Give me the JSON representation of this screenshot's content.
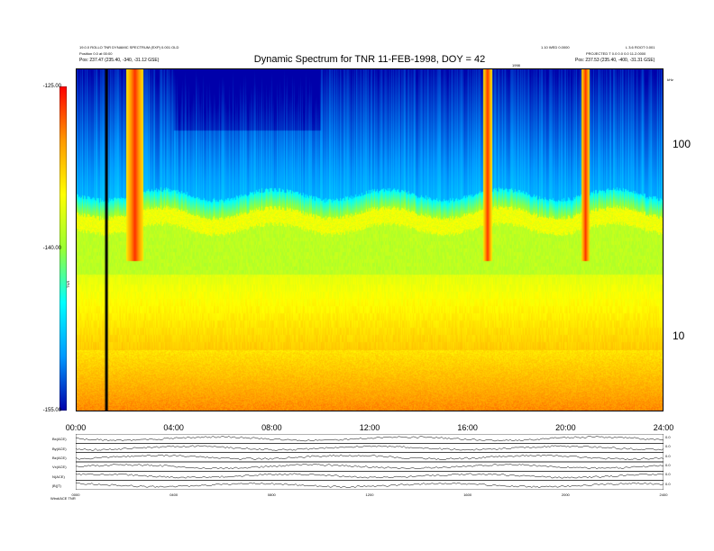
{
  "header": {
    "left_line1": "19.0.0 ROLLO TNR DYNAMIC SPECTRUM (EXP) 0.001 OLD",
    "left_line2": "Position 0.0 at 00:00",
    "left_pos": "Pos:   237.47 (235.40, -340, -31.12 GSE)",
    "right_line1": "1.10 WED 0.0000",
    "right_line2": "L 3.6 ROOT 0.001",
    "right_line3": "PROJECTED T 0.0 0.0 0.0 11.2.0000",
    "right_pos": "Pos:   237.53 (235.40, -400, -31.31 GSE)",
    "center_sub": "1998",
    "right_mark": "kHz"
  },
  "chart_data": {
    "type": "heatmap",
    "title": "Dynamic Spectrum for TNR 11-FEB-1998, DOY = 42",
    "x_ticks": [
      "00:00",
      "04:00",
      "08:00",
      "12:00",
      "16:00",
      "20:00",
      "24:00"
    ],
    "xlim": [
      0,
      24
    ],
    "y_ticks": [
      "100",
      "10"
    ],
    "y_tick_values": [
      100,
      10
    ],
    "ylim": [
      4,
      250
    ],
    "yscale": "log",
    "colorbar_ticks": [
      "-125.00",
      "-140.00",
      "-155.00"
    ],
    "colorbar_values": [
      -125,
      -140,
      -155
    ],
    "colorbar_label": "TNR",
    "colorbar_stops": [
      "#ff0000",
      "#ff9900",
      "#ffff00",
      "#99ff33",
      "#00ffff",
      "#0099ff",
      "#0000aa"
    ],
    "bursts_hours": [
      2.4,
      16.8,
      20.8
    ],
    "data_gap_hour": 1.2,
    "baseline_plasma_line_khz": 50
  },
  "panels": {
    "labels": [
      "Bx(ACE)",
      "By(ACE)",
      "Bz(ACE)",
      "Vx(ACE)",
      "N(ACE)",
      "|B|(T)"
    ],
    "values": [
      "0.0",
      "0.0",
      "0.0",
      "0.0",
      "0.0",
      "0.0"
    ],
    "time_ticks": [
      "0000",
      "0400",
      "0800",
      "1200",
      "1600",
      "2000",
      "2400"
    ],
    "footer": "Wind/ACE TNR"
  }
}
